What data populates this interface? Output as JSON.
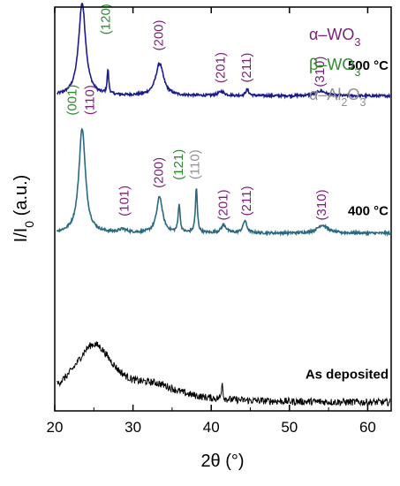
{
  "chart_data": {
    "type": "line",
    "xlabel": "2θ (°)",
    "ylabel": "I/I",
    "ylabel_sub": "0",
    "ylabel_unit": "(a.u.)",
    "xlim": [
      20,
      63
    ],
    "x_ticks": [
      20,
      30,
      40,
      50,
      60
    ],
    "y_ticks_shown": false,
    "legend": [
      {
        "prefix": "α–WO",
        "sub": "3",
        "color": "#7a1f7a"
      },
      {
        "prefix": "β–WO",
        "sub": "3",
        "color": "#2e8b2e"
      },
      {
        "prefix": "α–Al",
        "sub": "2",
        "suffix": "O",
        "sub2": "3",
        "color": "#909090"
      }
    ],
    "series": [
      {
        "name": "500 °C",
        "color": "#1c1c8c",
        "level": 0.78,
        "peaks": [
          {
            "x": 23.5,
            "h": 0.23,
            "w": 0.55
          },
          {
            "x": 26.8,
            "h": 0.06,
            "w": 0.12
          },
          {
            "x": 33.4,
            "h": 0.08,
            "w": 0.6
          },
          {
            "x": 41.3,
            "h": 0.01,
            "w": 0.5
          },
          {
            "x": 44.6,
            "h": 0.015,
            "w": 0.25
          },
          {
            "x": 54.0,
            "h": 0.012,
            "w": 0.8
          }
        ],
        "labels": [
          {
            "x": 23.5,
            "text": "(001)",
            "color": "#2e8b2e",
            "at": 0.3
          },
          {
            "x": 26.6,
            "text": "(120)",
            "color": "#2e8b2e",
            "at": 0.19
          },
          {
            "x": 33.4,
            "text": "(200)",
            "color": "#7a1f7a",
            "at": 0.15
          },
          {
            "x": 41.3,
            "text": "(201)",
            "color": "#7a1f7a",
            "at": 0.07
          },
          {
            "x": 44.6,
            "text": "(211)",
            "color": "#7a1f7a",
            "at": 0.07
          },
          {
            "x": 54.0,
            "text": "(310)",
            "color": "#7a1f7a",
            "at": 0.06
          }
        ]
      },
      {
        "name": "400 °C",
        "color": "#2a6a80",
        "level": 0.44,
        "peaks": [
          {
            "x": 23.5,
            "h": 0.26,
            "w": 0.5
          },
          {
            "x": 28.7,
            "h": 0.008,
            "w": 0.6
          },
          {
            "x": 33.4,
            "h": 0.09,
            "w": 0.45
          },
          {
            "x": 35.9,
            "h": 0.07,
            "w": 0.15
          },
          {
            "x": 38.1,
            "h": 0.11,
            "w": 0.15
          },
          {
            "x": 41.6,
            "h": 0.02,
            "w": 0.4
          },
          {
            "x": 44.3,
            "h": 0.03,
            "w": 0.3
          },
          {
            "x": 54.2,
            "h": 0.02,
            "w": 0.8
          }
        ],
        "labels": [
          {
            "x": 22.3,
            "text": "(001)",
            "color": "#2e8b2e",
            "at": 0.33
          },
          {
            "x": 24.6,
            "text": "(110)",
            "color": "#7a1f7a",
            "at": 0.33
          },
          {
            "x": 29.0,
            "text": "(101)",
            "color": "#7a1f7a",
            "at": 0.08
          },
          {
            "x": 33.4,
            "text": "(200)",
            "color": "#7a1f7a",
            "at": 0.15
          },
          {
            "x": 35.9,
            "text": "(121)",
            "color": "#2e8b2e",
            "at": 0.17
          },
          {
            "x": 38.0,
            "text": "(110)",
            "color": "#909090",
            "at": 0.17
          },
          {
            "x": 41.6,
            "text": "(201)",
            "color": "#7a1f7a",
            "at": 0.07
          },
          {
            "x": 44.6,
            "text": "(211)",
            "color": "#7a1f7a",
            "at": 0.08
          },
          {
            "x": 54.2,
            "text": "(310)",
            "color": "#7a1f7a",
            "at": 0.07
          }
        ]
      },
      {
        "name": "As deposited",
        "color": "#000000",
        "level": 0.02,
        "peaks": [
          {
            "x": 25.0,
            "h": 0.14,
            "w": 3.2
          },
          {
            "x": 33.0,
            "h": 0.03,
            "w": 3.5
          },
          {
            "x": 41.4,
            "h": 0.05,
            "w": 0.08
          }
        ],
        "labels": []
      }
    ]
  }
}
